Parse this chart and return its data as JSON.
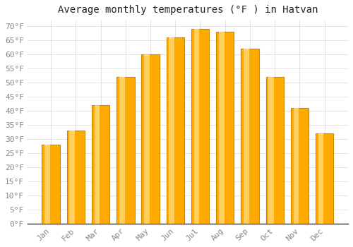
{
  "title": "Average monthly temperatures (°F ) in Hatvan",
  "months": [
    "Jan",
    "Feb",
    "Mar",
    "Apr",
    "May",
    "Jun",
    "Jul",
    "Aug",
    "Sep",
    "Oct",
    "Nov",
    "Dec"
  ],
  "values": [
    28,
    33,
    42,
    52,
    60,
    66,
    69,
    68,
    62,
    52,
    41,
    32
  ],
  "bar_color_main": "#FFAA00",
  "bar_color_edge": "#CC8800",
  "bar_color_light": "#FFD060",
  "background_color": "#FFFFFF",
  "grid_color": "#DDDDDD",
  "ylim": [
    0,
    72
  ],
  "yticks": [
    0,
    5,
    10,
    15,
    20,
    25,
    30,
    35,
    40,
    45,
    50,
    55,
    60,
    65,
    70
  ],
  "title_fontsize": 10,
  "tick_fontsize": 8,
  "font_family": "monospace",
  "tick_color": "#888888"
}
